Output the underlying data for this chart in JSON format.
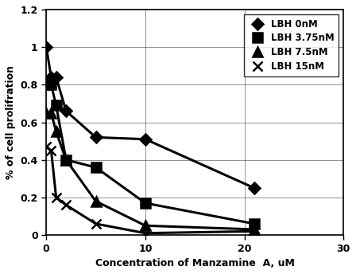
{
  "series": [
    {
      "label": "LBH 0nM",
      "x": [
        0,
        0.5,
        1,
        2,
        5,
        10,
        21
      ],
      "y": [
        1.0,
        0.84,
        0.84,
        0.66,
        0.52,
        0.51,
        0.25
      ],
      "marker": "D",
      "markersize": 7,
      "linewidth": 2.2
    },
    {
      "label": "LBH 3.75nM",
      "x": [
        0,
        0.5,
        1,
        2,
        5,
        10,
        21
      ],
      "y": [
        0.8,
        0.8,
        0.69,
        0.4,
        0.36,
        0.17,
        0.06
      ],
      "marker": "s",
      "markersize": 8,
      "linewidth": 2.2
    },
    {
      "label": "LBH 7.5nM",
      "x": [
        0,
        0.5,
        1,
        2,
        5,
        10,
        21
      ],
      "y": [
        0.65,
        0.65,
        0.55,
        0.4,
        0.18,
        0.05,
        0.03
      ],
      "marker": "^",
      "markersize": 8,
      "linewidth": 2.2
    },
    {
      "label": "LBH 15nM",
      "x": [
        0,
        0.5,
        1,
        2,
        5,
        10,
        21
      ],
      "y": [
        0.47,
        0.45,
        0.2,
        0.16,
        0.06,
        0.01,
        0.02
      ],
      "marker": "x",
      "markersize": 9,
      "linewidth": 2.2
    }
  ],
  "color": "#000000",
  "xlabel": "Concentration of Manzamine  A, uM",
  "ylabel": "% of cell prolifration",
  "xlim": [
    0,
    30
  ],
  "ylim": [
    0,
    1.2
  ],
  "xticks": [
    0,
    10,
    20,
    30
  ],
  "yticks": [
    0,
    0.2,
    0.4,
    0.6,
    0.8,
    1.0,
    1.2
  ],
  "grid": true,
  "background_color": "#ffffff",
  "legend_loc": "upper right",
  "axis_fontsize": 9,
  "tick_fontsize": 9,
  "legend_fontsize": 8.5
}
